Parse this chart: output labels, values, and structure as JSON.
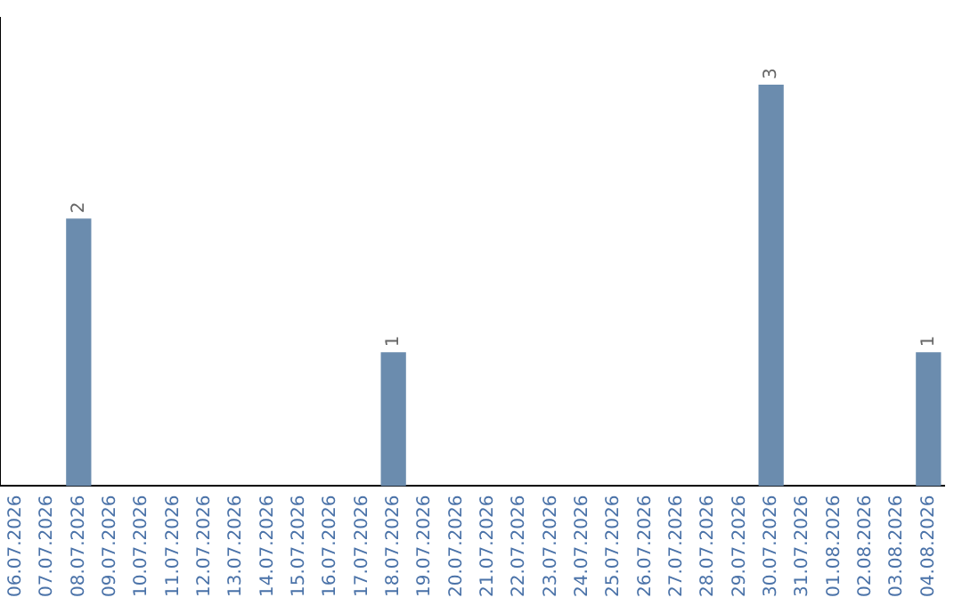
{
  "chart_data": {
    "type": "bar",
    "categories": [
      "06.07.2026",
      "07.07.2026",
      "08.07.2026",
      "09.07.2026",
      "10.07.2026",
      "11.07.2026",
      "12.07.2026",
      "13.07.2026",
      "14.07.2026",
      "15.07.2026",
      "16.07.2026",
      "17.07.2026",
      "18.07.2026",
      "19.07.2026",
      "20.07.2026",
      "21.07.2026",
      "22.07.2026",
      "23.07.2026",
      "24.07.2026",
      "25.07.2026",
      "26.07.2026",
      "27.07.2026",
      "28.07.2026",
      "29.07.2026",
      "30.07.2026",
      "31.07.2026",
      "01.08.2026",
      "02.08.2026",
      "03.08.2026",
      "04.08.2026"
    ],
    "values": [
      0,
      0,
      2,
      0,
      0,
      0,
      0,
      0,
      0,
      0,
      0,
      0,
      1,
      0,
      0,
      0,
      0,
      0,
      0,
      0,
      0,
      0,
      0,
      0,
      3,
      0,
      0,
      0,
      0,
      1
    ],
    "value_labels": [
      null,
      null,
      "2",
      null,
      null,
      null,
      null,
      null,
      null,
      null,
      null,
      null,
      "1",
      null,
      null,
      null,
      null,
      null,
      null,
      null,
      null,
      null,
      null,
      null,
      "3",
      null,
      null,
      null,
      null,
      "1"
    ],
    "color": "#6b8cae",
    "grid": false,
    "legend": false,
    "tick_labels": "x"
  }
}
